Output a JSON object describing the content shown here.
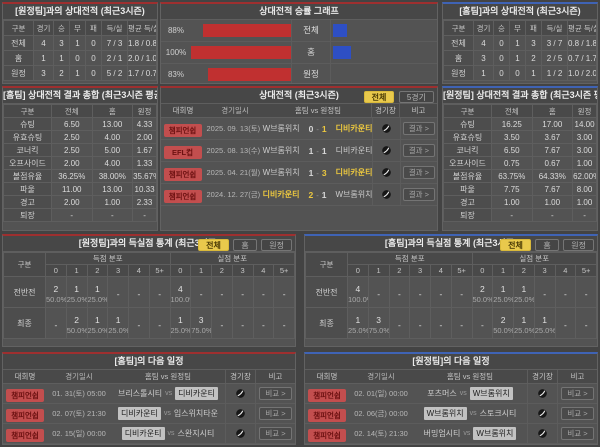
{
  "chart_data": {
    "type": "bar",
    "title": "상대전적 승률 그래프",
    "categories": [
      "전체",
      "홈",
      "원정"
    ],
    "series": [
      {
        "name": "좌측 적색 승률",
        "color": "#c03030",
        "values": [
          88,
          100,
          83
        ]
      },
      {
        "name": "우측 청색 승률",
        "color": "#2e4fc4",
        "values": [
          13,
          17,
          0
        ]
      }
    ],
    "value_labels": [
      "88%",
      "100%",
      "83%"
    ],
    "unit": "%",
    "xlim": [
      0,
      100
    ],
    "legend": "none",
    "grid": "row-separators"
  },
  "top_left": {
    "title": "[원정팀]과의 상대전적 (최근3시즌)",
    "headers": [
      "구분",
      "경기",
      "승",
      "무",
      "패",
      "득/실",
      "평균 득/실"
    ],
    "rows": [
      {
        "label": "전체",
        "v": [
          "4",
          "3",
          "1",
          "0",
          "7 / 3",
          "1.8 / 0.8"
        ]
      },
      {
        "label": "홈",
        "v": [
          "1",
          "1",
          "0",
          "0",
          "2 / 1",
          "2.0 / 1.0"
        ]
      },
      {
        "label": "원정",
        "v": [
          "3",
          "2",
          "1",
          "0",
          "5 / 2",
          "1.7 / 0.7"
        ]
      }
    ]
  },
  "top_chart": {
    "title": "상대전적 승률 그래프",
    "rows": [
      {
        "pct": "88%",
        "label": "전체"
      },
      {
        "pct": "100%",
        "label": "홈"
      },
      {
        "pct": "83%",
        "label": "원정"
      }
    ]
  },
  "top_right": {
    "title": "[홈팀]과의 상대전적 (최근3시즌)",
    "headers": [
      "구분",
      "경기",
      "승",
      "무",
      "패",
      "득/실",
      "평균 득/실"
    ],
    "rows": [
      {
        "label": "전체",
        "v": [
          "4",
          "0",
          "1",
          "3",
          "3 / 7",
          "0.8 / 1.8"
        ]
      },
      {
        "label": "홈",
        "v": [
          "3",
          "0",
          "1",
          "2",
          "2 / 5",
          "0.7 / 1.7"
        ]
      },
      {
        "label": "원정",
        "v": [
          "1",
          "0",
          "0",
          "1",
          "1 / 2",
          "1.0 / 2.0"
        ]
      }
    ]
  },
  "mid_left": {
    "title": "[홈팀] 상대전적 결과 총합 (최근3시즌 평균)",
    "headers": [
      "구분",
      "전체",
      "홈",
      "원정"
    ],
    "rows": [
      {
        "label": "슈팅",
        "v": [
          "6.50",
          "13.00",
          "4.33"
        ]
      },
      {
        "label": "유효슈팅",
        "v": [
          "2.50",
          "4.00",
          "2.00"
        ]
      },
      {
        "label": "코너킥",
        "v": [
          "2.50",
          "5.00",
          "1.67"
        ]
      },
      {
        "label": "오프사이드",
        "v": [
          "2.00",
          "4.00",
          "1.33"
        ]
      },
      {
        "label": "볼점유율",
        "v": [
          "36.25%",
          "38.00%",
          "35.67%"
        ]
      },
      {
        "label": "파울",
        "v": [
          "11.00",
          "13.00",
          "10.33"
        ]
      },
      {
        "label": "경고",
        "v": [
          "2.00",
          "1.00",
          "2.33"
        ]
      },
      {
        "label": "퇴장",
        "v": [
          "-",
          "-",
          "-"
        ]
      }
    ]
  },
  "mid_center": {
    "title": "상대전적 (최근3시즌)",
    "filters": [
      "전체",
      "5경기"
    ],
    "headers": [
      "대회명",
      "경기일시",
      "홈팀 vs 원정팀",
      "경기장",
      "비고"
    ],
    "result_label": "결과 >",
    "score_sep": "-",
    "rows": [
      {
        "league": "챔피언쉽",
        "date": "2025. 09. 13(토)",
        "home": "W브롬위치",
        "sh": "0",
        "sa": "1",
        "away": "디비카운티"
      },
      {
        "league": "EFL컵",
        "date": "2025. 08. 13(수)",
        "home": "W브롬위치",
        "sh": "1",
        "sa": "1",
        "away": "디비카운티"
      },
      {
        "league": "챔피언쉽",
        "date": "2025. 04. 21(월)",
        "home": "W브롬위치",
        "sh": "1",
        "sa": "3",
        "away": "디비카운티"
      },
      {
        "league": "챔피언쉽",
        "date": "2024. 12. 27(금)",
        "home": "디비카운티",
        "sh": "2",
        "sa": "1",
        "away": "W브롬위치"
      }
    ]
  },
  "mid_right": {
    "title": "[원정팀] 상대전적 결과 총합 (최근3시즌 평균)",
    "headers": [
      "구분",
      "전체",
      "홈",
      "원정"
    ],
    "rows": [
      {
        "label": "슈팅",
        "v": [
          "16.25",
          "17.00",
          "14.00"
        ]
      },
      {
        "label": "유효슈팅",
        "v": [
          "3.50",
          "3.67",
          "3.00"
        ]
      },
      {
        "label": "코너킥",
        "v": [
          "6.50",
          "7.67",
          "3.00"
        ]
      },
      {
        "label": "오프사이드",
        "v": [
          "0.75",
          "0.67",
          "1.00"
        ]
      },
      {
        "label": "볼점유율",
        "v": [
          "63.75%",
          "64.33%",
          "62.00%"
        ]
      },
      {
        "label": "파울",
        "v": [
          "7.75",
          "7.67",
          "8.00"
        ]
      },
      {
        "label": "경고",
        "v": [
          "1.00",
          "1.00",
          "1.00"
        ]
      },
      {
        "label": "퇴장",
        "v": [
          "-",
          "-",
          "-"
        ]
      }
    ]
  },
  "dist_left": {
    "title": "[원정팀]과의 득실점 통계 (최근3시즌)",
    "filters": [
      "전체",
      "홈",
      "원정"
    ],
    "col_label": "구분",
    "group_score": "득점 분포",
    "group_concede": "실점 분포",
    "bins": [
      "0",
      "1",
      "2",
      "3",
      "4",
      "5+"
    ],
    "rows": [
      {
        "label": "전반전",
        "score": [
          {
            "n": "2",
            "p": "50.0%"
          },
          {
            "n": "1",
            "p": "25.0%"
          },
          {
            "n": "1",
            "p": "25.0%"
          },
          {
            "n": "-",
            "p": ""
          },
          {
            "n": "-",
            "p": ""
          },
          {
            "n": "-",
            "p": ""
          }
        ],
        "concede": [
          {
            "n": "4",
            "p": "100.0%"
          },
          {
            "n": "-",
            "p": ""
          },
          {
            "n": "-",
            "p": ""
          },
          {
            "n": "-",
            "p": ""
          },
          {
            "n": "-",
            "p": ""
          },
          {
            "n": "-",
            "p": ""
          }
        ]
      },
      {
        "label": "최종",
        "score": [
          {
            "n": "-",
            "p": ""
          },
          {
            "n": "2",
            "p": "50.0%"
          },
          {
            "n": "1",
            "p": "25.0%"
          },
          {
            "n": "1",
            "p": "25.0%"
          },
          {
            "n": "-",
            "p": ""
          },
          {
            "n": "-",
            "p": ""
          }
        ],
        "concede": [
          {
            "n": "1",
            "p": "25.0%"
          },
          {
            "n": "3",
            "p": "75.0%"
          },
          {
            "n": "-",
            "p": ""
          },
          {
            "n": "-",
            "p": ""
          },
          {
            "n": "-",
            "p": ""
          },
          {
            "n": "-",
            "p": ""
          }
        ]
      }
    ]
  },
  "dist_right": {
    "title": "[홈팀]과의 득실점 통계 (최근3시즌)",
    "filters": [
      "전체",
      "홈",
      "원정"
    ],
    "col_label": "구분",
    "group_score": "득점 분포",
    "group_concede": "실점 분포",
    "bins": [
      "0",
      "1",
      "2",
      "3",
      "4",
      "5+"
    ],
    "rows": [
      {
        "label": "전반전",
        "score": [
          {
            "n": "4",
            "p": "100.0%"
          },
          {
            "n": "-",
            "p": ""
          },
          {
            "n": "-",
            "p": ""
          },
          {
            "n": "-",
            "p": ""
          },
          {
            "n": "-",
            "p": ""
          },
          {
            "n": "-",
            "p": ""
          }
        ],
        "concede": [
          {
            "n": "2",
            "p": "50.0%"
          },
          {
            "n": "1",
            "p": "25.0%"
          },
          {
            "n": "1",
            "p": "25.0%"
          },
          {
            "n": "-",
            "p": ""
          },
          {
            "n": "-",
            "p": ""
          },
          {
            "n": "-",
            "p": ""
          }
        ]
      },
      {
        "label": "최종",
        "score": [
          {
            "n": "1",
            "p": "25.0%"
          },
          {
            "n": "3",
            "p": "75.0%"
          },
          {
            "n": "-",
            "p": ""
          },
          {
            "n": "-",
            "p": ""
          },
          {
            "n": "-",
            "p": ""
          },
          {
            "n": "-",
            "p": ""
          }
        ],
        "concede": [
          {
            "n": "-",
            "p": ""
          },
          {
            "n": "2",
            "p": "50.0%"
          },
          {
            "n": "1",
            "p": "25.0%"
          },
          {
            "n": "1",
            "p": "25.0%"
          },
          {
            "n": "-",
            "p": ""
          },
          {
            "n": "-",
            "p": ""
          }
        ]
      }
    ]
  },
  "next_left": {
    "title": "[홈팀]의 다음 일정",
    "headers": [
      "대회명",
      "경기일시",
      "홈팀 vs 원정팀",
      "경기장",
      "비고"
    ],
    "vs_label": "vs",
    "compare_label": "비교 >",
    "rows": [
      {
        "league": "챔피언쉽",
        "date": "01. 31(토) 05:00",
        "home": "브리스톨시티",
        "away": "디비카운티"
      },
      {
        "league": "챔피언쉽",
        "date": "02. 07(토) 21:30",
        "home": "디비카운티",
        "away": "입스위치타운"
      },
      {
        "league": "챔피언쉽",
        "date": "02. 15(일) 00:00",
        "home": "디비카운티",
        "away": "스완지시티"
      }
    ]
  },
  "next_right": {
    "title": "[원정팀]의 다음 일정",
    "headers": [
      "대회명",
      "경기일시",
      "홈팀 vs 원정팀",
      "경기장",
      "비고"
    ],
    "vs_label": "vs",
    "compare_label": "비교 >",
    "rows": [
      {
        "league": "챔피언쉽",
        "date": "02. 01(일) 00:00",
        "home": "포츠머스",
        "away": "W브롬위치"
      },
      {
        "league": "챔피언쉽",
        "date": "02. 06(금) 00:00",
        "home": "W브롬위치",
        "away": "스토크시티"
      },
      {
        "league": "챔피언쉽",
        "date": "02. 14(토) 21:30",
        "home": "버밍엄시티",
        "away": "W브롬위치"
      }
    ]
  }
}
